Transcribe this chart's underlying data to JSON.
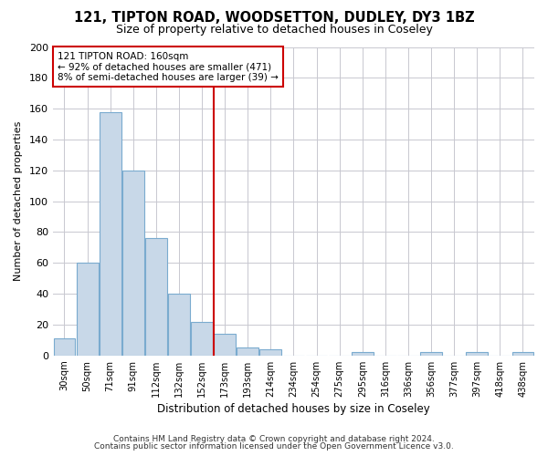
{
  "title1": "121, TIPTON ROAD, WOODSETTON, DUDLEY, DY3 1BZ",
  "title2": "Size of property relative to detached houses in Coseley",
  "xlabel": "Distribution of detached houses by size in Coseley",
  "ylabel": "Number of detached properties",
  "categories": [
    "30sqm",
    "50sqm",
    "71sqm",
    "91sqm",
    "112sqm",
    "132sqm",
    "152sqm",
    "173sqm",
    "193sqm",
    "214sqm",
    "234sqm",
    "254sqm",
    "275sqm",
    "295sqm",
    "316sqm",
    "336sqm",
    "356sqm",
    "377sqm",
    "397sqm",
    "418sqm",
    "438sqm"
  ],
  "values": [
    11,
    60,
    158,
    120,
    76,
    40,
    22,
    14,
    5,
    4,
    0,
    0,
    0,
    2,
    0,
    0,
    2,
    0,
    2,
    0,
    2
  ],
  "bar_color": "#c8d8e8",
  "bar_edge_color": "#7aabcf",
  "vline_x_idx": 7,
  "vline_color": "#cc0000",
  "annotation_line1": "121 TIPTON ROAD: 160sqm",
  "annotation_line2": "← 92% of detached houses are smaller (471)",
  "annotation_line3": "8% of semi-detached houses are larger (39) →",
  "annotation_box_color": "#ffffff",
  "annotation_box_edge": "#cc0000",
  "ylim": [
    0,
    200
  ],
  "yticks": [
    0,
    20,
    40,
    60,
    80,
    100,
    120,
    140,
    160,
    180,
    200
  ],
  "footer1": "Contains HM Land Registry data © Crown copyright and database right 2024.",
  "footer2": "Contains public sector information licensed under the Open Government Licence v3.0.",
  "background_color": "#ffffff",
  "grid_color": "#c8c8d0"
}
